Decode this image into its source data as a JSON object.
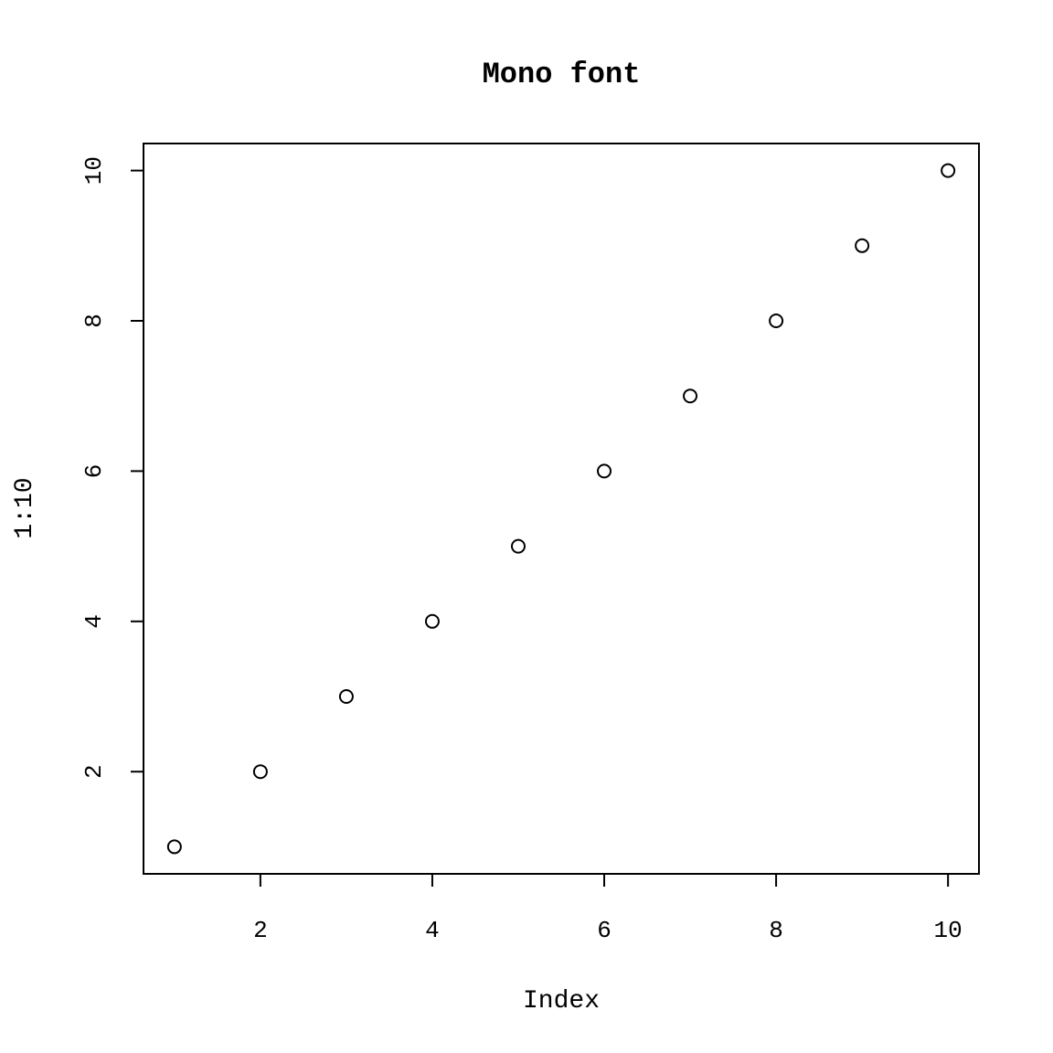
{
  "chart_data": {
    "type": "scatter",
    "title": "Mono font",
    "xlabel": "Index",
    "ylabel": "1:10",
    "x": [
      1,
      2,
      3,
      4,
      5,
      6,
      7,
      8,
      9,
      10
    ],
    "y": [
      1,
      2,
      3,
      4,
      5,
      6,
      7,
      8,
      9,
      10
    ],
    "xlim": [
      0.64,
      10.36
    ],
    "ylim": [
      0.64,
      10.36
    ],
    "x_ticks": [
      2,
      4,
      6,
      8,
      10
    ],
    "y_ticks": [
      2,
      4,
      6,
      8,
      10
    ],
    "x_tick_labels": [
      "2",
      "4",
      "6",
      "8",
      "10"
    ],
    "y_tick_labels": [
      "2",
      "4",
      "6",
      "8",
      "10"
    ],
    "grid": false,
    "legend": "none",
    "marker": "open-circle",
    "colors": {
      "ink": "#000000",
      "background": "#ffffff"
    }
  }
}
